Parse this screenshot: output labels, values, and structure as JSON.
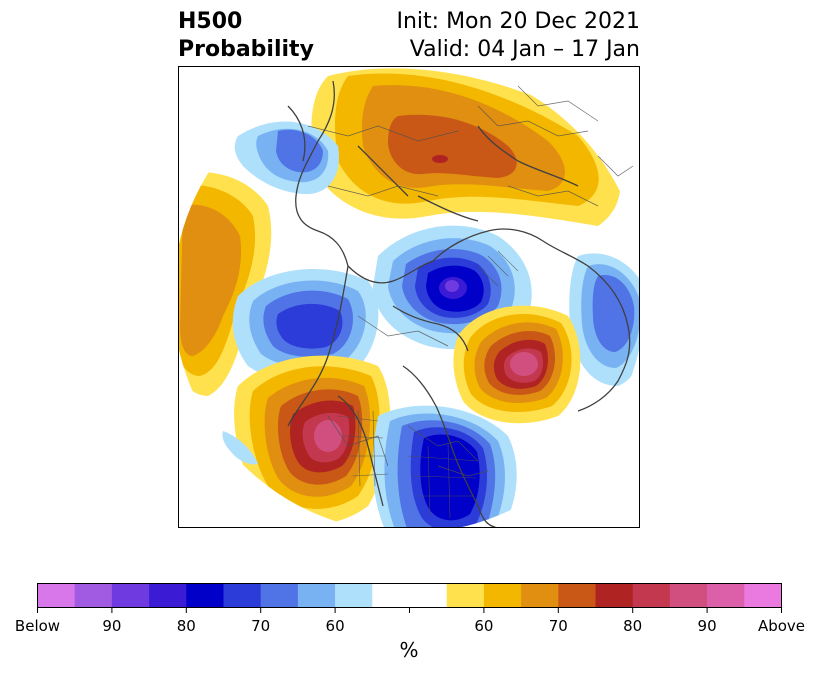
{
  "header": {
    "field": "H500",
    "product": "Probability",
    "init": "Init: Mon 20 Dec 2021",
    "valid": "Valid: 04 Jan – 17 Jan"
  },
  "map": {
    "projection": "north-polar-stereographic",
    "features": [
      "coastlines",
      "country-borders",
      "state-borders"
    ]
  },
  "colorbar": {
    "unit": "%",
    "colors": [
      "#d877ea",
      "#a15ae2",
      "#6f3adf",
      "#3b1cd4",
      "#0000c8",
      "#2b3cd8",
      "#5074e6",
      "#78b2f3",
      "#aee0fc",
      "#ffffff",
      "#ffffff",
      "#ffe14d",
      "#f3b700",
      "#e08f10",
      "#c95716",
      "#b02323",
      "#c4384f",
      "#d04f7f",
      "#dc5fa9",
      "#ea7adf"
    ],
    "tick_labels": [
      {
        "label": "Below",
        "index": 0
      },
      {
        "label": "90",
        "index": 2
      },
      {
        "label": "80",
        "index": 4
      },
      {
        "label": "70",
        "index": 6
      },
      {
        "label": "60",
        "index": 8
      },
      {
        "label": "60",
        "index": 12
      },
      {
        "label": "70",
        "index": 14
      },
      {
        "label": "80",
        "index": 16
      },
      {
        "label": "90",
        "index": 18
      },
      {
        "label": "Above",
        "index": 20
      }
    ]
  }
}
